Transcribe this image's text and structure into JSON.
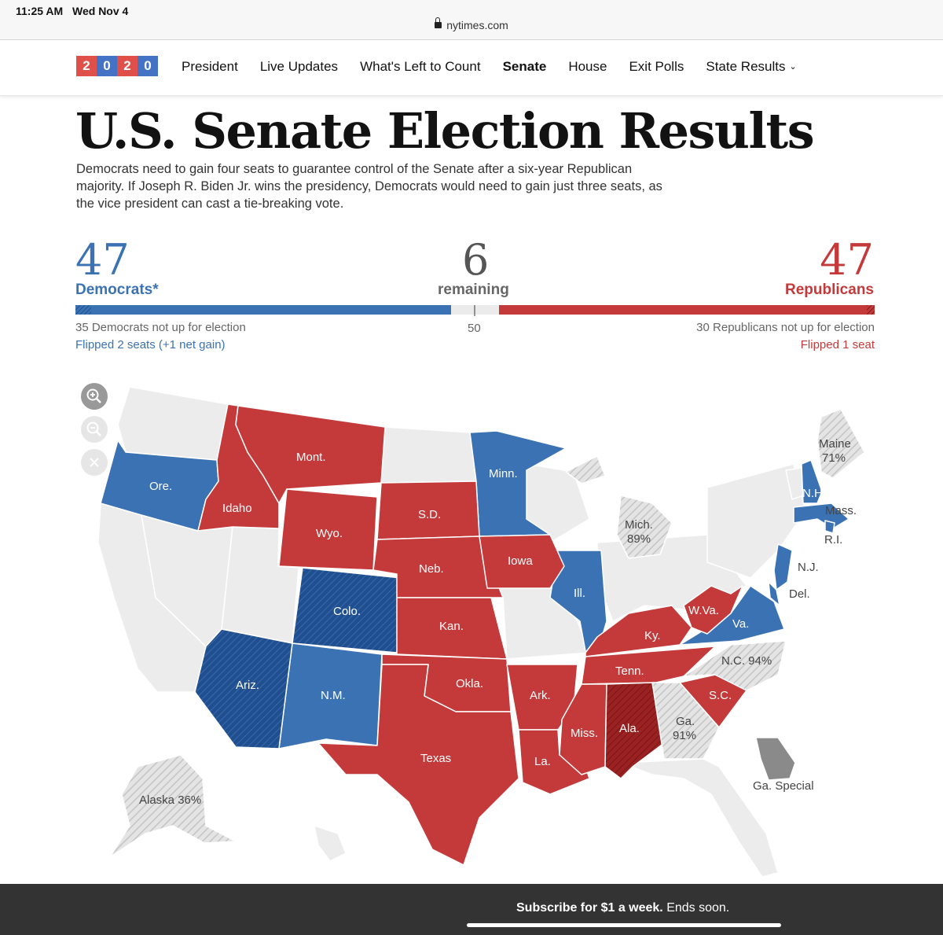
{
  "status": {
    "time": "11:25 AM",
    "date": "Wed Nov 4",
    "url": "nytimes.com"
  },
  "logo": {
    "digits": [
      "2",
      "0",
      "2",
      "0"
    ],
    "colors": [
      "#e0504a",
      "#4473c5",
      "#e0504a",
      "#4473c5"
    ]
  },
  "nav": {
    "items": [
      "President",
      "Live Updates",
      "What's Left to Count",
      "Senate",
      "House",
      "Exit Polls",
      "State Results"
    ],
    "active": "Senate",
    "dropdown_icon": "chevron-down-icon"
  },
  "page": {
    "title": "U.S. Senate Election Results",
    "intro": "Democrats need to gain four seats to guarantee control of the Senate after a six-year Republican majority. If Joseph R. Biden Jr. wins the presidency, Democrats would need to gain just three seats, as the vice president can cast a tie-breaking vote."
  },
  "tally": {
    "dem_count": "47",
    "dem_label": "Democrats*",
    "remaining_count": "6",
    "remaining_label": "remaining",
    "rep_count": "47",
    "rep_label": "Republicans",
    "midpoint": "50",
    "dem_not_up": "35 Democrats not up for election",
    "dem_flipped": "Flipped 2 seats (+1 net gain)",
    "rep_not_up": "30 Republicans not up for election",
    "rep_flipped": "Flipped 1 seat",
    "colors": {
      "dem": "#3a72b4",
      "rep": "#c43a3a",
      "remaining": "#ebebeb",
      "dem_text": "#3a72b4",
      "rep_text": "#c43a3a"
    }
  },
  "map": {
    "controls": [
      {
        "name": "zoom-in-icon",
        "glyph": "+"
      },
      {
        "name": "zoom-out-icon",
        "glyph": "−"
      },
      {
        "name": "reset-icon",
        "glyph": "✕"
      }
    ],
    "states": {
      "ore": "Ore.",
      "idaho": "Idaho",
      "mont": "Mont.",
      "wyo": "Wyo.",
      "sd": "S.D.",
      "neb": "Neb.",
      "minn": "Minn.",
      "iowa": "Iowa",
      "colo": "Colo.",
      "kan": "Kan.",
      "ill": "Ill.",
      "ariz": "Ariz.",
      "nm": "N.M.",
      "okla": "Okla.",
      "texas": "Texas",
      "ark": "Ark.",
      "la": "La.",
      "miss": "Miss.",
      "ala": "Ala.",
      "tenn": "Tenn.",
      "ky": "Ky.",
      "wva": "W.Va.",
      "va": "Va.",
      "nc": "N.C. 94%",
      "sc": "S.C.",
      "ga_line1": "Ga.",
      "ga_line2": "91%",
      "ga_special": "Ga. Special",
      "mich_line1": "Mich.",
      "mich_line2": "89%",
      "maine_line1": "Maine",
      "maine_line2": "71%",
      "nh": "N.H.",
      "mass": "Mass.",
      "ri": "R.I.",
      "nj": "N.J.",
      "del": "Del.",
      "alaska": "Alaska 36%"
    },
    "colors": {
      "dem": "#3a72b4",
      "dem_dark": "#1f4f8f",
      "rep": "#c43a3a",
      "rep_dark": "#9b2222",
      "none": "#ececec",
      "pending": "#d6d6d6",
      "special": "#8a8a8a"
    }
  },
  "footer": {
    "subscribe_bold": "Subscribe for $1 a week.",
    "subscribe_rest": " Ends soon."
  }
}
